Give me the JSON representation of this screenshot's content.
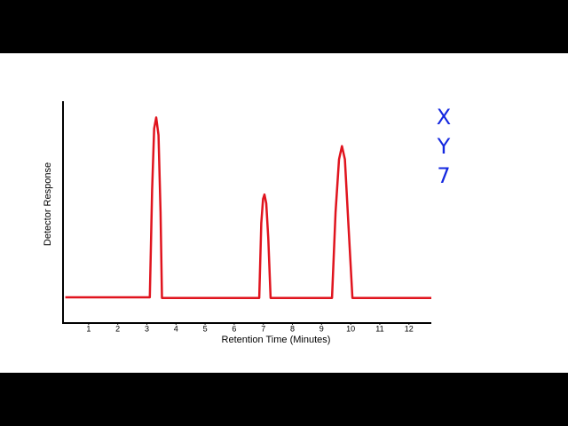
{
  "chart_data": {
    "type": "line",
    "x_label": "Retention Time (Minutes)",
    "y_label": "Detector Response",
    "annotations": [
      "X",
      "Y",
      "7"
    ],
    "x": [
      0.2,
      3.1,
      3.18,
      3.25,
      3.32,
      3.4,
      3.47,
      3.52,
      6.86,
      6.93,
      6.99,
      7.04,
      7.1,
      7.17,
      7.25,
      9.36,
      9.48,
      9.6,
      9.7,
      9.8,
      9.92,
      10.06,
      12.77
    ],
    "values": [
      11.3,
      11.3,
      60,
      88,
      93,
      85,
      50,
      11,
      11,
      45,
      56,
      58,
      54,
      38,
      11,
      11,
      50,
      74,
      80,
      74,
      45,
      11,
      11
    ],
    "color": "#e0141e",
    "xlim": [
      0.12,
      12.77
    ],
    "ylim": [
      0,
      100
    ],
    "xticks": [
      1,
      2,
      3,
      4,
      5,
      6,
      7,
      8,
      9,
      10,
      11,
      12
    ]
  }
}
